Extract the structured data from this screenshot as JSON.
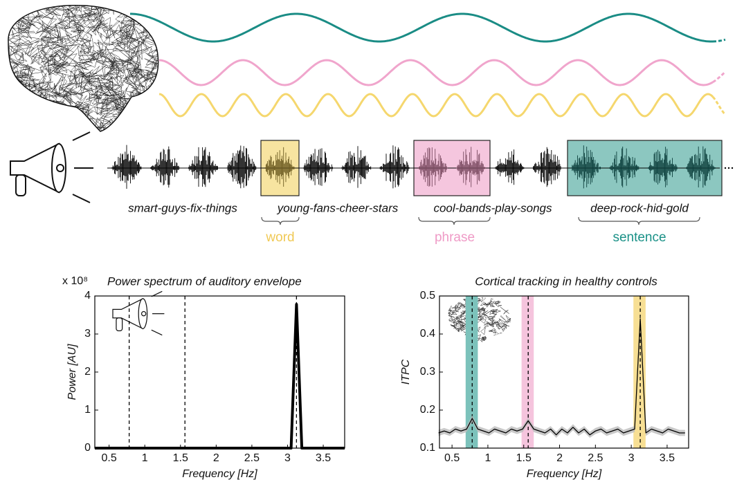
{
  "stimulus": {
    "phrases": [
      "smart-guys-fix-things",
      "young-fans-cheer-stars",
      "cool-bands-play-songs",
      "deep-rock-hid-gold"
    ],
    "levels": [
      "word",
      "phrase",
      "sentence"
    ]
  },
  "chart_data": [
    {
      "type": "line",
      "title": "Power spectrum of auditory envelope",
      "y_multiplier": "x 10⁸",
      "xlabel": "Frequency [Hz]",
      "ylabel": "Power [AU]",
      "xlim": [
        0.3,
        3.8
      ],
      "ylim": [
        0,
        4
      ],
      "xticks": [
        0.5,
        1,
        1.5,
        2,
        2.5,
        3,
        3.5
      ],
      "yticks": [
        0,
        1,
        2,
        3,
        4
      ],
      "reference_lines": [
        0.78125,
        1.5625,
        3.125
      ],
      "series": [
        {
          "color": "#000000",
          "x": [
            0.3,
            3.05,
            3.125,
            3.2,
            3.8
          ],
          "values": [
            0,
            0,
            3.78,
            0,
            0
          ]
        }
      ]
    },
    {
      "type": "line",
      "title": "Cortical tracking in healthy controls",
      "xlabel": "Frequency [Hz]",
      "ylabel": "ITPC",
      "xlim": [
        0.325,
        3.8
      ],
      "ylim": [
        0.1,
        0.5
      ],
      "xticks": [
        0.5,
        1,
        1.5,
        2,
        2.5,
        3,
        3.5
      ],
      "yticks": [
        0.1,
        0.2,
        0.3,
        0.4,
        0.5
      ],
      "reference_lines": [
        0.78125,
        1.5625,
        3.125
      ],
      "bands": [
        {
          "x": [
            0.69,
            0.86
          ],
          "color": "#7cc2bb"
        },
        {
          "x": [
            1.47,
            1.64
          ],
          "color": "#f5c4dd"
        },
        {
          "x": [
            3.03,
            3.2
          ],
          "color": "#f7df94"
        }
      ],
      "series": [
        {
          "color": "#000000",
          "error": 0.008,
          "x": [
            0.3125,
            0.3906,
            0.4688,
            0.5469,
            0.625,
            0.7031,
            0.7813,
            0.8594,
            0.9375,
            1.0156,
            1.0938,
            1.1719,
            1.25,
            1.3281,
            1.4063,
            1.4844,
            1.5625,
            1.6406,
            1.7188,
            1.7969,
            1.875,
            1.9531,
            2.0313,
            2.1094,
            2.1875,
            2.2656,
            2.3438,
            2.4219,
            2.5,
            2.5781,
            2.6563,
            2.7344,
            2.8125,
            2.8906,
            2.9688,
            3.0469,
            3.125,
            3.2031,
            3.2813,
            3.3594,
            3.4375,
            3.5156,
            3.5938,
            3.6719,
            3.75
          ],
          "values": [
            0.14,
            0.145,
            0.14,
            0.15,
            0.145,
            0.15,
            0.178,
            0.15,
            0.145,
            0.14,
            0.15,
            0.145,
            0.14,
            0.15,
            0.145,
            0.15,
            0.172,
            0.15,
            0.145,
            0.14,
            0.15,
            0.135,
            0.15,
            0.14,
            0.155,
            0.14,
            0.15,
            0.135,
            0.145,
            0.15,
            0.14,
            0.145,
            0.15,
            0.14,
            0.145,
            0.15,
            0.44,
            0.14,
            0.15,
            0.145,
            0.14,
            0.15,
            0.145,
            0.14,
            0.14
          ]
        }
      ]
    }
  ]
}
